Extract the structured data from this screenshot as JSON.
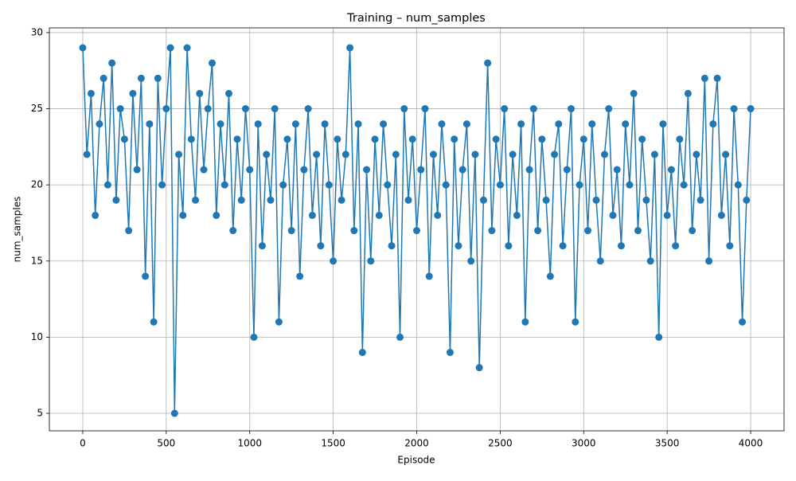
{
  "chart_data": {
    "type": "line",
    "title": "Training – num_samples",
    "x_label": "Episode",
    "y_label": "num_samples",
    "x": [
      0,
      25,
      50,
      75,
      100,
      125,
      150,
      175,
      200,
      225,
      250,
      275,
      300,
      325,
      350,
      375,
      400,
      425,
      450,
      475,
      500,
      525,
      550,
      575,
      600,
      625,
      650,
      675,
      700,
      725,
      750,
      775,
      800,
      825,
      850,
      875,
      900,
      925,
      950,
      975,
      1000,
      1025,
      1050,
      1075,
      1100,
      1125,
      1150,
      1175,
      1200,
      1225,
      1250,
      1275,
      1300,
      1325,
      1350,
      1375,
      1400,
      1425,
      1450,
      1475,
      1500,
      1525,
      1550,
      1575,
      1600,
      1625,
      1650,
      1675,
      1700,
      1725,
      1750,
      1775,
      1800,
      1825,
      1850,
      1875,
      1900,
      1925,
      1950,
      1975,
      2000,
      2025,
      2050,
      2075,
      2100,
      2125,
      2150,
      2175,
      2200,
      2225,
      2250,
      2275,
      2300,
      2325,
      2350,
      2375,
      2400,
      2425,
      2450,
      2475,
      2500,
      2525,
      2550,
      2575,
      2600,
      2625,
      2650,
      2675,
      2700,
      2725,
      2750,
      2775,
      2800,
      2825,
      2850,
      2875,
      2900,
      2925,
      2950,
      2975,
      3000,
      3025,
      3050,
      3075,
      3100,
      3125,
      3150,
      3175,
      3200,
      3225,
      3250,
      3275,
      3300,
      3325,
      3350,
      3375,
      3400,
      3425,
      3450,
      3475,
      3500,
      3525,
      3550,
      3575,
      3600,
      3625,
      3650,
      3675,
      3700,
      3725,
      3750,
      3775,
      3800,
      3825,
      3850,
      3875,
      3900,
      3925,
      3950,
      3975,
      4000
    ],
    "values": [
      29,
      22,
      26,
      18,
      24,
      27,
      20,
      28,
      19,
      25,
      23,
      17,
      26,
      21,
      27,
      14,
      24,
      11,
      27,
      20,
      25,
      29,
      5,
      22,
      18,
      29,
      23,
      19,
      26,
      21,
      25,
      28,
      18,
      24,
      20,
      26,
      17,
      23,
      19,
      25,
      21,
      10,
      24,
      16,
      22,
      19,
      25,
      11,
      20,
      23,
      17,
      24,
      14,
      21,
      25,
      18,
      22,
      16,
      24,
      20,
      15,
      23,
      19,
      22,
      29,
      17,
      24,
      9,
      21,
      15,
      23,
      18,
      24,
      20,
      16,
      22,
      10,
      25,
      19,
      23,
      17,
      21,
      25,
      14,
      22,
      18,
      24,
      20,
      9,
      23,
      16,
      21,
      24,
      15,
      22,
      8,
      19,
      28,
      17,
      23,
      20,
      25,
      16,
      22,
      18,
      24,
      11,
      21,
      25,
      17,
      23,
      19,
      14,
      22,
      24,
      16,
      21,
      25,
      11,
      20,
      23,
      17,
      24,
      19,
      15,
      22,
      25,
      18,
      21,
      16,
      24,
      20,
      26,
      17,
      23,
      19,
      15,
      22,
      10,
      24,
      18,
      21,
      16,
      23,
      20,
      26,
      17,
      22,
      19,
      27,
      15,
      24,
      27,
      18,
      22,
      16,
      25,
      20,
      11,
      19,
      25
    ],
    "color": "#1f77b4",
    "xlim": [
      -200,
      4200
    ],
    "ylim": [
      3.85,
      30.31
    ],
    "xticks": [
      0,
      500,
      1000,
      1500,
      2000,
      2500,
      3000,
      3500,
      4000
    ],
    "yticks": [
      5,
      10,
      15,
      20,
      25,
      30
    ],
    "grid": true
  }
}
